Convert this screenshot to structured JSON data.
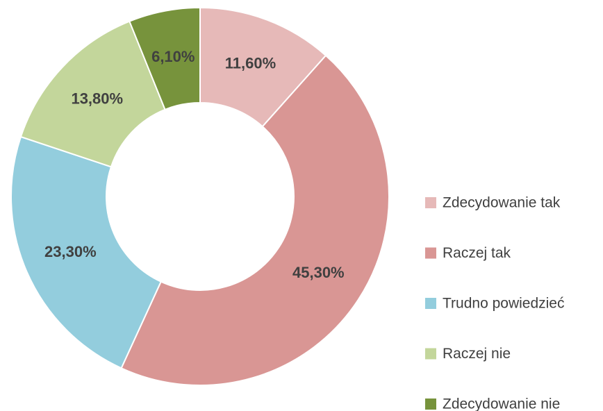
{
  "chart_data": {
    "type": "donut",
    "categories": [
      "Zdecydowanie tak",
      "Raczej tak",
      "Trudno powiedzieć",
      "Raczej nie",
      "Zdecydowanie nie"
    ],
    "values": [
      11.6,
      45.3,
      23.3,
      13.8,
      6.1
    ],
    "value_labels": [
      "11,60%",
      "45,30%",
      "23,30%",
      "13,80%",
      "6,10%"
    ],
    "colors": [
      "#e6b9b8",
      "#d99694",
      "#93cddd",
      "#c3d69b",
      "#77933c"
    ],
    "legend": "right"
  }
}
